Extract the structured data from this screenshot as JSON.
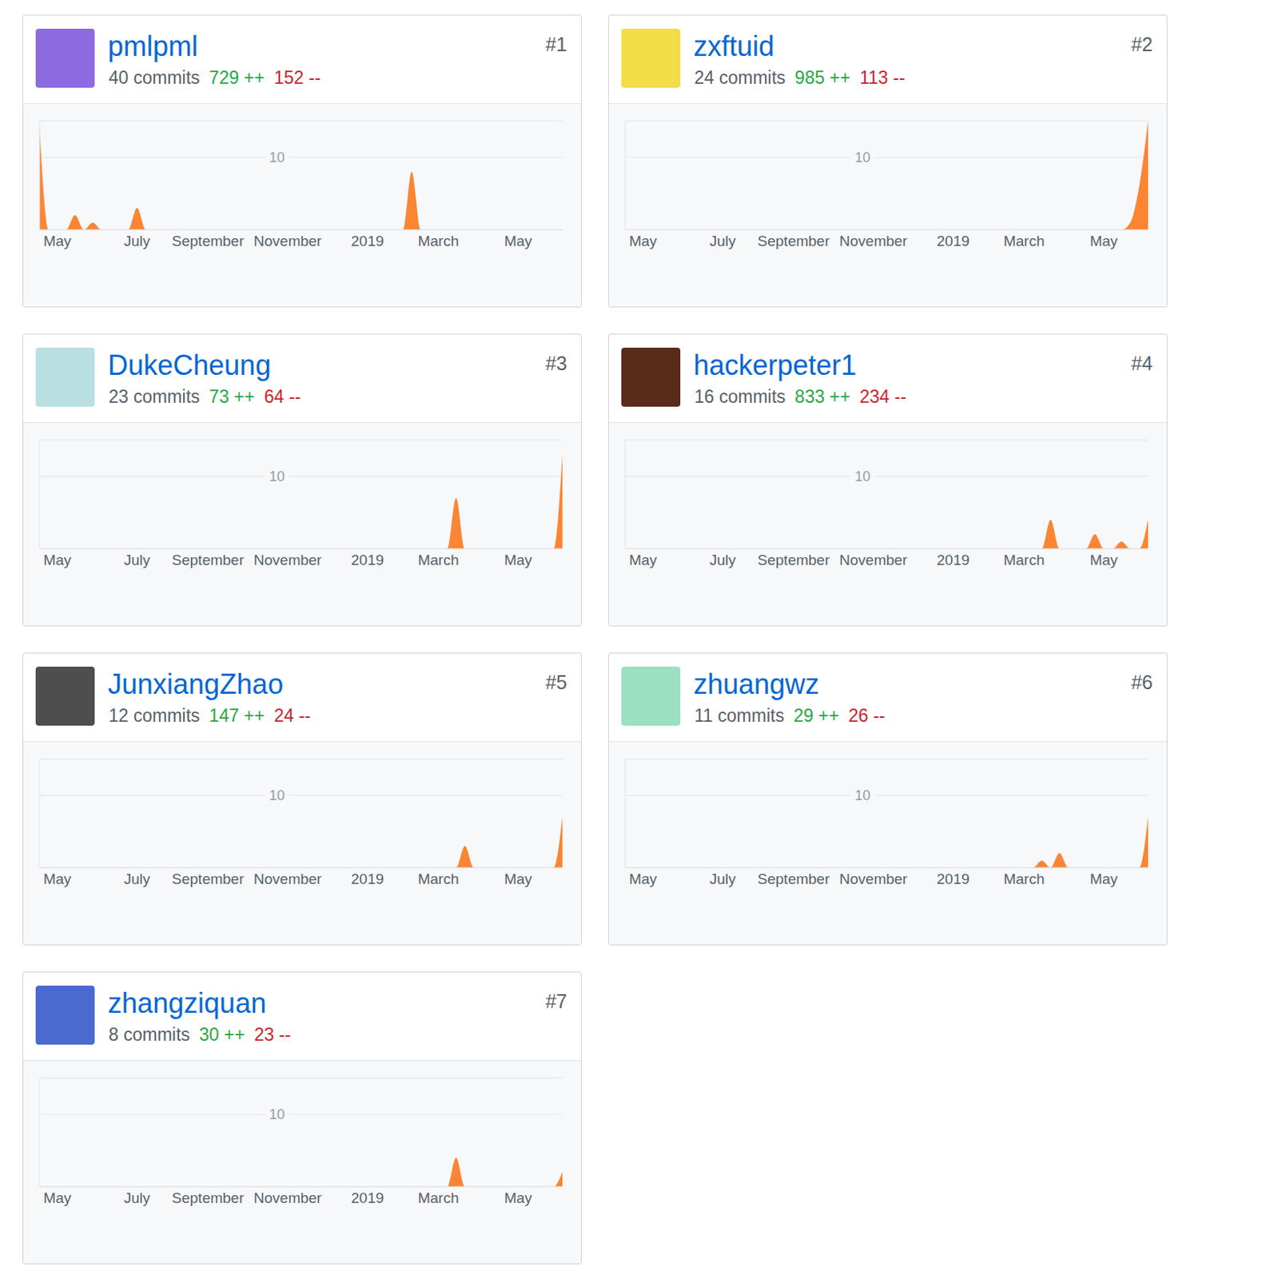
{
  "chart_data": [
    {
      "type": "area",
      "title": "pmlpml",
      "rank": "#1",
      "commits": {
        "value": 40,
        "label": "40 commits"
      },
      "additions": {
        "value": 729,
        "label": "729 ++"
      },
      "deletions": {
        "value": 152,
        "label": "152 --"
      },
      "categories": [
        null,
        null,
        "May",
        null,
        null,
        null,
        null,
        null,
        null,
        null,
        null,
        "July",
        null,
        null,
        null,
        null,
        null,
        null,
        null,
        "September",
        null,
        null,
        null,
        null,
        null,
        null,
        null,
        null,
        "November",
        null,
        null,
        null,
        null,
        null,
        null,
        null,
        null,
        "2019",
        null,
        null,
        null,
        null,
        null,
        null,
        null,
        "March",
        null,
        null,
        null,
        null,
        null,
        null,
        null,
        null,
        "May",
        null,
        null,
        null,
        null,
        null
      ],
      "values": [
        14,
        0,
        0,
        0,
        2,
        0,
        1,
        0,
        0,
        0,
        0,
        3,
        0,
        0,
        0,
        0,
        0,
        0,
        0,
        0,
        0,
        0,
        0,
        0,
        0,
        0,
        0,
        0,
        0,
        0,
        0,
        0,
        0,
        0,
        0,
        0,
        0,
        0,
        0,
        0,
        0,
        0,
        8,
        0,
        0,
        0,
        0,
        0,
        0,
        0,
        0,
        0,
        0,
        0,
        0,
        0,
        0,
        0,
        0,
        0
      ],
      "color": "#fb8532",
      "ylim": [
        0,
        15
      ],
      "yticks": [
        10
      ],
      "grid": true
    },
    {
      "type": "area",
      "title": "zxftuid",
      "rank": "#2",
      "commits": {
        "value": 24,
        "label": "24 commits"
      },
      "additions": {
        "value": 985,
        "label": "985 ++"
      },
      "deletions": {
        "value": 113,
        "label": "113 --"
      },
      "categories": [
        null,
        null,
        "May",
        null,
        null,
        null,
        null,
        null,
        null,
        null,
        null,
        "July",
        null,
        null,
        null,
        null,
        null,
        null,
        null,
        "September",
        null,
        null,
        null,
        null,
        null,
        null,
        null,
        null,
        "November",
        null,
        null,
        null,
        null,
        null,
        null,
        null,
        null,
        "2019",
        null,
        null,
        null,
        null,
        null,
        null,
        null,
        "March",
        null,
        null,
        null,
        null,
        null,
        null,
        null,
        null,
        "May",
        null,
        null,
        null,
        null,
        null
      ],
      "values": [
        0,
        0,
        0,
        0,
        0,
        0,
        0,
        0,
        0,
        0,
        0,
        0,
        0,
        0,
        0,
        0,
        0,
        0,
        0,
        0,
        0,
        0,
        0,
        0,
        0,
        0,
        0,
        0,
        0,
        0,
        0,
        0,
        0,
        0,
        0,
        0,
        0,
        0,
        0,
        0,
        0,
        0,
        0,
        0,
        0,
        0,
        0,
        0,
        0,
        0,
        0,
        0,
        0,
        0,
        0,
        0,
        0,
        1,
        6,
        15
      ],
      "color": "#fb8532",
      "ylim": [
        0,
        15
      ],
      "yticks": [
        10
      ],
      "grid": true
    },
    {
      "type": "area",
      "title": "DukeCheung",
      "rank": "#3",
      "commits": {
        "value": 23,
        "label": "23 commits"
      },
      "additions": {
        "value": 73,
        "label": "73 ++"
      },
      "deletions": {
        "value": 64,
        "label": "64 --"
      },
      "categories": [
        null,
        null,
        "May",
        null,
        null,
        null,
        null,
        null,
        null,
        null,
        null,
        "July",
        null,
        null,
        null,
        null,
        null,
        null,
        null,
        "September",
        null,
        null,
        null,
        null,
        null,
        null,
        null,
        null,
        "November",
        null,
        null,
        null,
        null,
        null,
        null,
        null,
        null,
        "2019",
        null,
        null,
        null,
        null,
        null,
        null,
        null,
        "March",
        null,
        null,
        null,
        null,
        null,
        null,
        null,
        null,
        "May",
        null,
        null,
        null,
        null,
        null
      ],
      "values": [
        0,
        0,
        0,
        0,
        0,
        0,
        0,
        0,
        0,
        0,
        0,
        0,
        0,
        0,
        0,
        0,
        0,
        0,
        0,
        0,
        0,
        0,
        0,
        0,
        0,
        0,
        0,
        0,
        0,
        0,
        0,
        0,
        0,
        0,
        0,
        0,
        0,
        0,
        0,
        0,
        0,
        0,
        0,
        0,
        0,
        0,
        0,
        7,
        0,
        0,
        0,
        0,
        0,
        0,
        0,
        0,
        0,
        0,
        0,
        13
      ],
      "color": "#fb8532",
      "ylim": [
        0,
        15
      ],
      "yticks": [
        10
      ],
      "grid": true
    },
    {
      "type": "area",
      "title": "hackerpeter1",
      "rank": "#4",
      "commits": {
        "value": 16,
        "label": "16 commits"
      },
      "additions": {
        "value": 833,
        "label": "833 ++"
      },
      "deletions": {
        "value": 234,
        "label": "234 --"
      },
      "categories": [
        null,
        null,
        "May",
        null,
        null,
        null,
        null,
        null,
        null,
        null,
        null,
        "July",
        null,
        null,
        null,
        null,
        null,
        null,
        null,
        "September",
        null,
        null,
        null,
        null,
        null,
        null,
        null,
        null,
        "November",
        null,
        null,
        null,
        null,
        null,
        null,
        null,
        null,
        "2019",
        null,
        null,
        null,
        null,
        null,
        null,
        null,
        "March",
        null,
        null,
        null,
        null,
        null,
        null,
        null,
        null,
        "May",
        null,
        null,
        null,
        null,
        null
      ],
      "values": [
        0,
        0,
        0,
        0,
        0,
        0,
        0,
        0,
        0,
        0,
        0,
        0,
        0,
        0,
        0,
        0,
        0,
        0,
        0,
        0,
        0,
        0,
        0,
        0,
        0,
        0,
        0,
        0,
        0,
        0,
        0,
        0,
        0,
        0,
        0,
        0,
        0,
        0,
        0,
        0,
        0,
        0,
        0,
        0,
        0,
        0,
        0,
        0,
        4,
        0,
        0,
        0,
        0,
        2,
        0,
        0,
        1,
        0,
        0,
        4
      ],
      "color": "#fb8532",
      "ylim": [
        0,
        15
      ],
      "yticks": [
        10
      ],
      "grid": true
    },
    {
      "type": "area",
      "title": "JunxiangZhao",
      "rank": "#5",
      "commits": {
        "value": 12,
        "label": "12 commits"
      },
      "additions": {
        "value": 147,
        "label": "147 ++"
      },
      "deletions": {
        "value": 24,
        "label": "24 --"
      },
      "categories": [
        null,
        null,
        "May",
        null,
        null,
        null,
        null,
        null,
        null,
        null,
        null,
        "July",
        null,
        null,
        null,
        null,
        null,
        null,
        null,
        "September",
        null,
        null,
        null,
        null,
        null,
        null,
        null,
        null,
        "November",
        null,
        null,
        null,
        null,
        null,
        null,
        null,
        null,
        "2019",
        null,
        null,
        null,
        null,
        null,
        null,
        null,
        "March",
        null,
        null,
        null,
        null,
        null,
        null,
        null,
        null,
        "May",
        null,
        null,
        null,
        null,
        null
      ],
      "values": [
        0,
        0,
        0,
        0,
        0,
        0,
        0,
        0,
        0,
        0,
        0,
        0,
        0,
        0,
        0,
        0,
        0,
        0,
        0,
        0,
        0,
        0,
        0,
        0,
        0,
        0,
        0,
        0,
        0,
        0,
        0,
        0,
        0,
        0,
        0,
        0,
        0,
        0,
        0,
        0,
        0,
        0,
        0,
        0,
        0,
        0,
        0,
        0,
        3,
        0,
        0,
        0,
        0,
        0,
        0,
        0,
        0,
        0,
        0,
        7
      ],
      "color": "#fb8532",
      "ylim": [
        0,
        15
      ],
      "yticks": [
        10
      ],
      "grid": true
    },
    {
      "type": "area",
      "title": "zhuangwz",
      "rank": "#6",
      "commits": {
        "value": 11,
        "label": "11 commits"
      },
      "additions": {
        "value": 29,
        "label": "29 ++"
      },
      "deletions": {
        "value": 26,
        "label": "26 --"
      },
      "categories": [
        null,
        null,
        "May",
        null,
        null,
        null,
        null,
        null,
        null,
        null,
        null,
        "July",
        null,
        null,
        null,
        null,
        null,
        null,
        null,
        "September",
        null,
        null,
        null,
        null,
        null,
        null,
        null,
        null,
        "November",
        null,
        null,
        null,
        null,
        null,
        null,
        null,
        null,
        "2019",
        null,
        null,
        null,
        null,
        null,
        null,
        null,
        "March",
        null,
        null,
        null,
        null,
        null,
        null,
        null,
        null,
        "May",
        null,
        null,
        null,
        null,
        null
      ],
      "values": [
        0,
        0,
        0,
        0,
        0,
        0,
        0,
        0,
        0,
        0,
        0,
        0,
        0,
        0,
        0,
        0,
        0,
        0,
        0,
        0,
        0,
        0,
        0,
        0,
        0,
        0,
        0,
        0,
        0,
        0,
        0,
        0,
        0,
        0,
        0,
        0,
        0,
        0,
        0,
        0,
        0,
        0,
        0,
        0,
        0,
        0,
        0,
        1,
        0,
        2,
        0,
        0,
        0,
        0,
        0,
        0,
        0,
        0,
        0,
        7
      ],
      "color": "#fb8532",
      "ylim": [
        0,
        15
      ],
      "yticks": [
        10
      ],
      "grid": true
    },
    {
      "type": "area",
      "title": "zhangziquan",
      "rank": "#7",
      "commits": {
        "value": 8,
        "label": "8 commits"
      },
      "additions": {
        "value": 30,
        "label": "30 ++"
      },
      "deletions": {
        "value": 23,
        "label": "23 --"
      },
      "categories": [
        null,
        null,
        "May",
        null,
        null,
        null,
        null,
        null,
        null,
        null,
        null,
        "July",
        null,
        null,
        null,
        null,
        null,
        null,
        null,
        "September",
        null,
        null,
        null,
        null,
        null,
        null,
        null,
        null,
        "November",
        null,
        null,
        null,
        null,
        null,
        null,
        null,
        null,
        "2019",
        null,
        null,
        null,
        null,
        null,
        null,
        null,
        "March",
        null,
        null,
        null,
        null,
        null,
        null,
        null,
        null,
        "May",
        null,
        null,
        null,
        null,
        null
      ],
      "values": [
        0,
        0,
        0,
        0,
        0,
        0,
        0,
        0,
        0,
        0,
        0,
        0,
        0,
        0,
        0,
        0,
        0,
        0,
        0,
        0,
        0,
        0,
        0,
        0,
        0,
        0,
        0,
        0,
        0,
        0,
        0,
        0,
        0,
        0,
        0,
        0,
        0,
        0,
        0,
        0,
        0,
        0,
        0,
        0,
        0,
        0,
        0,
        4,
        0,
        0,
        0,
        0,
        0,
        0,
        0,
        0,
        0,
        0,
        0,
        2
      ],
      "color": "#fb8532",
      "ylim": [
        0,
        15
      ],
      "yticks": [
        10
      ],
      "grid": true
    }
  ]
}
